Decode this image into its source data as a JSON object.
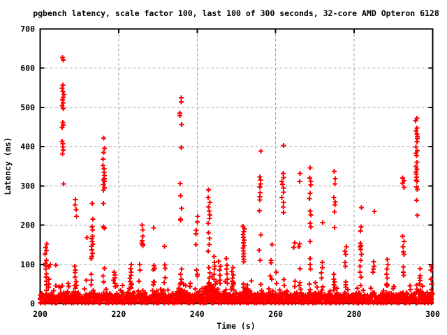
{
  "title": "pgbench latency, scale factor 100, last 100 of 300 seconds, 32-core AMD Opteron 6128",
  "axes": {
    "x_label": "Time (s)",
    "y_label": "Latency (ms)",
    "x_ticks": [
      200,
      220,
      240,
      260,
      280,
      300
    ],
    "y_ticks": [
      0,
      100,
      200,
      300,
      400,
      500,
      600,
      700
    ]
  },
  "colors": {
    "points": "#ff0000",
    "grid": "#a0a0a0",
    "axis": "#000000",
    "background": "#ffffff"
  },
  "chart_data": {
    "type": "scatter",
    "title": "pgbench latency, scale factor 100, last 100 of 300 seconds, 32-core AMD Opteron 6128",
    "xlabel": "Time (s)",
    "ylabel": "Latency (ms)",
    "xlim": [
      200,
      300
    ],
    "ylim": [
      0,
      700
    ],
    "grid": true,
    "legend": "none",
    "marker": "plus",
    "series_color": "#ff0000",
    "baseline_band": {
      "description": "Dense band of per-transaction latency points covering roughly 0-30 ms for every second; values are the approximate top of the solid band (ms) for each second starting at t=200.",
      "seconds_start": 200,
      "band_top_ms": [
        26,
        24,
        28,
        20,
        22,
        30,
        32,
        22,
        26,
        28,
        20,
        24,
        26,
        30,
        22,
        24,
        30,
        26,
        22,
        26,
        24,
        20,
        26,
        30,
        22,
        26,
        28,
        20,
        24,
        28,
        26,
        28,
        22,
        26,
        24,
        34,
        36,
        28,
        24,
        26,
        28,
        30,
        44,
        50,
        38,
        30,
        26,
        28,
        24,
        28,
        26,
        32,
        40,
        34,
        24,
        26,
        30,
        24,
        28,
        26,
        22,
        28,
        34,
        24,
        26,
        28,
        30,
        24,
        28,
        26,
        30,
        28,
        24,
        26,
        22,
        28,
        24,
        28,
        22,
        24,
        26,
        28,
        24,
        22,
        30,
        28,
        24,
        26,
        28,
        26,
        24,
        26,
        28,
        30,
        24,
        30,
        36,
        30,
        24,
        28
      ]
    },
    "spike_clusters": [
      {
        "t": 201.5,
        "values": [
          152,
          143,
          135,
          126,
          110,
          102,
          96,
          88,
          76,
          68,
          57,
          48
        ]
      },
      {
        "t": 202.4,
        "values": [
          100,
          93,
          62,
          50
        ]
      },
      {
        "t": 204.1,
        "values": [
          98,
          45
        ]
      },
      {
        "t": 205.8,
        "values": [
          627,
          621,
          557,
          549,
          541,
          533,
          526,
          519,
          511,
          504,
          497,
          462,
          455,
          449,
          414,
          407,
          399,
          391,
          382,
          305,
          45
        ]
      },
      {
        "t": 207.3,
        "values": [
          52,
          44
        ]
      },
      {
        "t": 209.0,
        "values": [
          265,
          252,
          239,
          222,
          95,
          85,
          79,
          68,
          56,
          46
        ]
      },
      {
        "t": 211.8,
        "values": [
          168,
          60
        ]
      },
      {
        "t": 213.2,
        "values": [
          255,
          215,
          196,
          188,
          172,
          165,
          158,
          151,
          146,
          137,
          128,
          120,
          115,
          75,
          60,
          48
        ]
      },
      {
        "t": 216.2,
        "values": [
          422,
          396,
          385,
          368,
          352,
          343,
          334,
          326,
          318,
          316,
          311,
          303,
          295,
          289,
          255,
          196,
          192,
          90,
          70
        ]
      },
      {
        "t": 218.9,
        "values": [
          80,
          73,
          66,
          60,
          52,
          44
        ]
      },
      {
        "t": 221.0,
        "values": [
          46
        ]
      },
      {
        "t": 223.1,
        "values": [
          100,
          89,
          80,
          72,
          64,
          56,
          50,
          48,
          42
        ]
      },
      {
        "t": 225.3,
        "values": [
          100,
          85,
          57
        ]
      },
      {
        "t": 226.0,
        "values": [
          200,
          188,
          172,
          160,
          154,
          151,
          148
        ]
      },
      {
        "t": 229.0,
        "values": [
          193,
          97,
          90,
          86,
          55,
          48
        ]
      },
      {
        "t": 231.7,
        "values": [
          146,
          99,
          90,
          66,
          53
        ]
      },
      {
        "t": 235.8,
        "values": [
          525,
          514,
          486,
          479,
          456,
          398,
          306,
          275,
          243,
          215,
          213,
          88,
          75,
          62,
          50
        ]
      },
      {
        "t": 238.3,
        "values": [
          52,
          44
        ]
      },
      {
        "t": 239.9,
        "values": [
          222,
          208,
          187,
          178,
          150,
          85,
          75,
          70
        ]
      },
      {
        "t": 243.0,
        "values": [
          290,
          270,
          258,
          246,
          236,
          226,
          217,
          205,
          181,
          166,
          150,
          133,
          92,
          78,
          65,
          52
        ]
      },
      {
        "t": 244.5,
        "values": [
          120,
          105,
          95,
          88,
          75,
          62,
          50
        ]
      },
      {
        "t": 245.7,
        "values": [
          108,
          95,
          85,
          72,
          60,
          52
        ]
      },
      {
        "t": 247.5,
        "values": [
          115,
          98,
          88,
          76,
          62,
          52
        ]
      },
      {
        "t": 249.0,
        "values": [
          92,
          82,
          73,
          65,
          57,
          50,
          44
        ]
      },
      {
        "t": 251.9,
        "values": [
          197,
          190,
          183,
          176,
          169,
          162,
          155,
          148,
          141,
          134,
          127,
          120,
          113,
          107,
          50,
          42
        ]
      },
      {
        "t": 256.0,
        "values": [
          389,
          323,
          315,
          305,
          297,
          283,
          272,
          264,
          237,
          175,
          136,
          110
        ]
      },
      {
        "t": 258.8,
        "values": [
          150,
          110,
          104,
          70,
          62
        ]
      },
      {
        "t": 260.3,
        "values": [
          80,
          52
        ]
      },
      {
        "t": 261.8,
        "values": [
          403,
          332,
          321,
          311,
          304,
          294,
          284,
          270,
          258,
          246,
          232
        ]
      },
      {
        "t": 264.8,
        "values": [
          155,
          143,
          57,
          44
        ]
      },
      {
        "t": 266.0,
        "values": [
          332,
          311,
          152,
          145,
          89,
          53,
          46
        ]
      },
      {
        "t": 268.8,
        "values": [
          346,
          320,
          311,
          302,
          281,
          268,
          236,
          226,
          205,
          196,
          158,
          115,
          100,
          88
        ]
      },
      {
        "t": 271.8,
        "values": [
          206,
          105,
          92,
          78,
          65
        ]
      },
      {
        "t": 275.0,
        "values": [
          337,
          318,
          305,
          270,
          259,
          252,
          234,
          194,
          75,
          62,
          55,
          48
        ]
      },
      {
        "t": 277.8,
        "values": [
          145,
          133,
          125,
          105,
          95,
          55,
          48,
          42
        ]
      },
      {
        "t": 281.7,
        "values": [
          245,
          196,
          185,
          154,
          148,
          145,
          138,
          125,
          110,
          95,
          80,
          68,
          46
        ]
      },
      {
        "t": 285.0,
        "values": [
          235,
          107,
          95,
          88,
          80
        ]
      },
      {
        "t": 288.5,
        "values": [
          113,
          100,
          88,
          75,
          65,
          50,
          45
        ]
      },
      {
        "t": 292.5,
        "values": [
          320,
          313,
          307,
          296,
          172,
          158,
          145,
          132,
          125,
          93,
          80,
          72
        ]
      },
      {
        "t": 295.9,
        "values": [
          472,
          466,
          447,
          440,
          432,
          426,
          421,
          413,
          399,
          390,
          383,
          377,
          360,
          350,
          342,
          335,
          330,
          322,
          315,
          311,
          297,
          291,
          263,
          225
        ]
      },
      {
        "t": 296.8,
        "values": [
          89,
          71,
          65,
          59
        ]
      },
      {
        "t": 299.6,
        "values": [
          95,
          85,
          62,
          50
        ]
      }
    ]
  }
}
